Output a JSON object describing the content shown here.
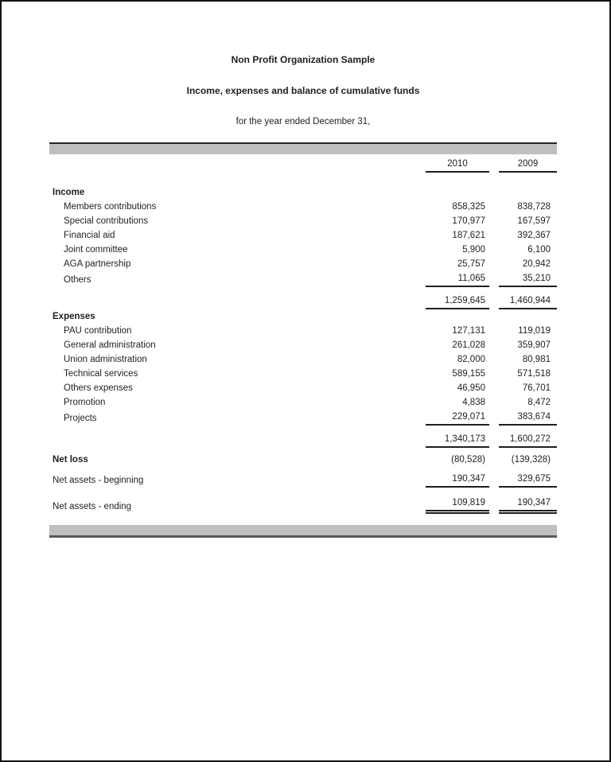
{
  "document": {
    "title": "Non Profit Organization Sample",
    "subtitle": "Income, expenses and balance of cumulative funds",
    "period": "for the year ended December 31,"
  },
  "colors": {
    "text": "#1f1f1f",
    "band_fill": "#bfbfbf",
    "band_top_border": "#262626",
    "band_bottom_border": "#595959",
    "rule": "#1f1f1f"
  },
  "statement": {
    "columns": [
      "2010",
      "2009"
    ],
    "income": {
      "heading": "Income",
      "items": [
        {
          "label": "Members contributions",
          "v2010": "858,325",
          "v2009": "838,728"
        },
        {
          "label": "Special contributions",
          "v2010": "170,977",
          "v2009": "167,597"
        },
        {
          "label": "Financial aid",
          "v2010": "187,621",
          "v2009": "392,367"
        },
        {
          "label": "Joint committee",
          "v2010": "5,900",
          "v2009": "6,100"
        },
        {
          "label": "AGA partnership",
          "v2010": "25,757",
          "v2009": "20,942"
        },
        {
          "label": "Others",
          "v2010": "11,065",
          "v2009": "35,210"
        }
      ],
      "total": {
        "v2010": "1,259,645",
        "v2009": "1,460,944"
      }
    },
    "expenses": {
      "heading": "Expenses",
      "items": [
        {
          "label": "PAU contribution",
          "v2010": "127,131",
          "v2009": "119,019"
        },
        {
          "label": "General administration",
          "v2010": "261,028",
          "v2009": "359,907"
        },
        {
          "label": "Union administration",
          "v2010": "82,000",
          "v2009": "80,981"
        },
        {
          "label": "Technical services",
          "v2010": "589,155",
          "v2009": "571,518"
        },
        {
          "label": "Others expenses",
          "v2010": "46,950",
          "v2009": "76,701"
        },
        {
          "label": "Promotion",
          "v2010": "4,838",
          "v2009": "8,472"
        },
        {
          "label": "Projects",
          "v2010": "229,071",
          "v2009": "383,674"
        }
      ],
      "total": {
        "v2010": "1,340,173",
        "v2009": "1,600,272"
      }
    },
    "summary": {
      "net_loss": {
        "label": "Net loss",
        "v2010": "(80,528)",
        "v2009": "(139,328)"
      },
      "net_assets_beginning": {
        "label": "Net assets - beginning",
        "v2010": "190,347",
        "v2009": "329,675"
      },
      "net_assets_ending": {
        "label": "Net assets - ending",
        "v2010": "109,819",
        "v2009": "190,347"
      }
    }
  }
}
